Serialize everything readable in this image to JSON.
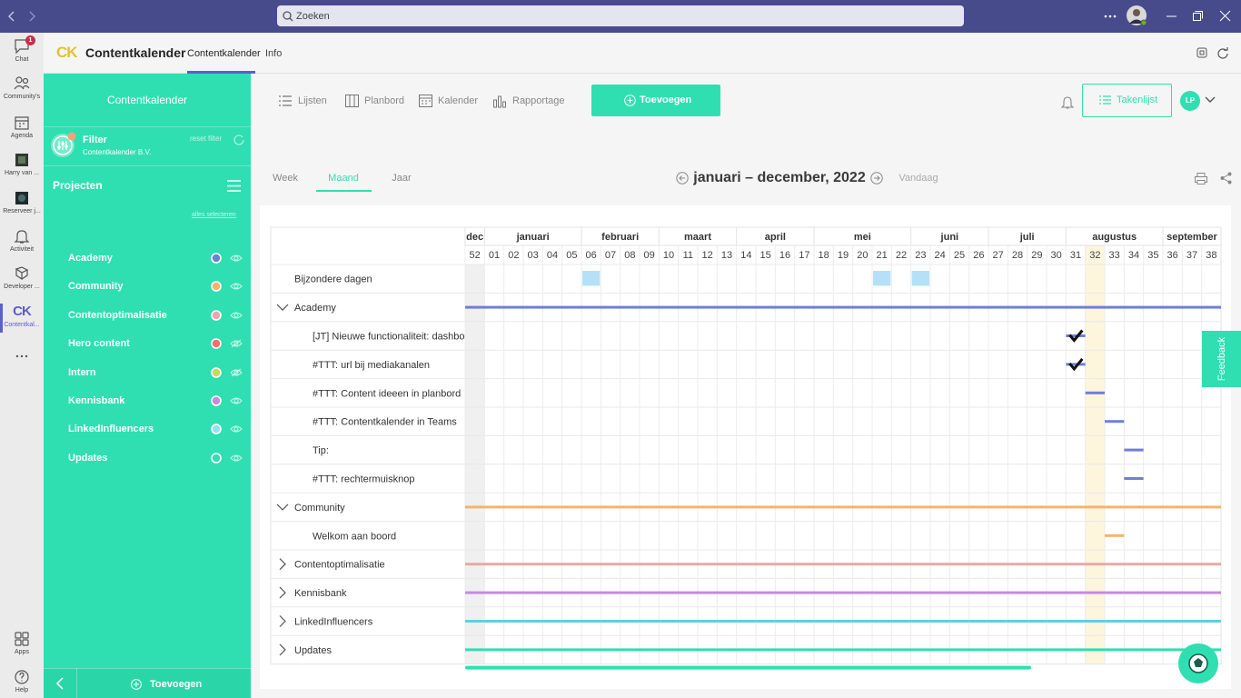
{
  "top_bar": {
    "search": "Zoeken"
  },
  "rail": {
    "badge": 1,
    "items": [
      "Chat",
      "Community's",
      "Agenda",
      "Harry van ...",
      "Reserveer j...",
      "Activiteit",
      "Developer ...",
      "Contentkal...",
      "Apps",
      "Help"
    ]
  },
  "app_header": {
    "logo": "CK",
    "title": "Contentkalender",
    "tabs": [
      "Contentkalender",
      "Info"
    ]
  },
  "sidebar": {
    "title": "Contentkalender",
    "filter": "Filter",
    "organisation": "Contentkalender B.V.",
    "reset": "reset filter",
    "projects_title": "Projecten",
    "select_all": "alles selecteren",
    "projects": [
      "Academy",
      "Community",
      "Contentoptimalisatie",
      "Hero content",
      "Intern",
      "Kennisbank",
      "LinkedInfluencers",
      "Updates"
    ],
    "add": "Toevoegen"
  },
  "toolbar": {
    "views": [
      "Lijsten",
      "Planbord",
      "Kalender",
      "Rapportage"
    ],
    "add": "Toevoegen",
    "tasks": "Takenlijst",
    "avatar": "LP"
  },
  "calendar": {
    "tabs": [
      "Week",
      "Maand",
      "Jaar"
    ],
    "period": "januari – december, 2022",
    "today": "Vandaag",
    "months": [
      "dec",
      "januari",
      "februari",
      "maart",
      "april",
      "mei",
      "juni",
      "juli",
      "augustus",
      "september"
    ],
    "weeks": [
      "52",
      "01",
      "02",
      "03",
      "04",
      "05",
      "06",
      "07",
      "08",
      "09",
      "10",
      "11",
      "12",
      "13",
      "14",
      "15",
      "16",
      "17",
      "18",
      "19",
      "20",
      "21",
      "22",
      "23",
      "24",
      "25",
      "26",
      "27",
      "28",
      "29",
      "30",
      "31",
      "32",
      "33",
      "34",
      "35",
      "36",
      "37",
      "38"
    ],
    "rows": [
      "Bijzondere dagen",
      "Academy",
      "[JT] Nieuwe functionaliteit: dashbo",
      "#TTT: url bij mediakanalen",
      "#TTT: Content ideeen in planbord",
      "#TTT: Contentkalender in Teams",
      "Tip:",
      "#TTT: rechtermuisknop",
      "Community",
      "Welkom aan boord",
      "Contentoptimalisatie",
      "Kennisbank",
      "LinkedInfluencers",
      "Updates"
    ]
  },
  "feedback": "Feedback"
}
